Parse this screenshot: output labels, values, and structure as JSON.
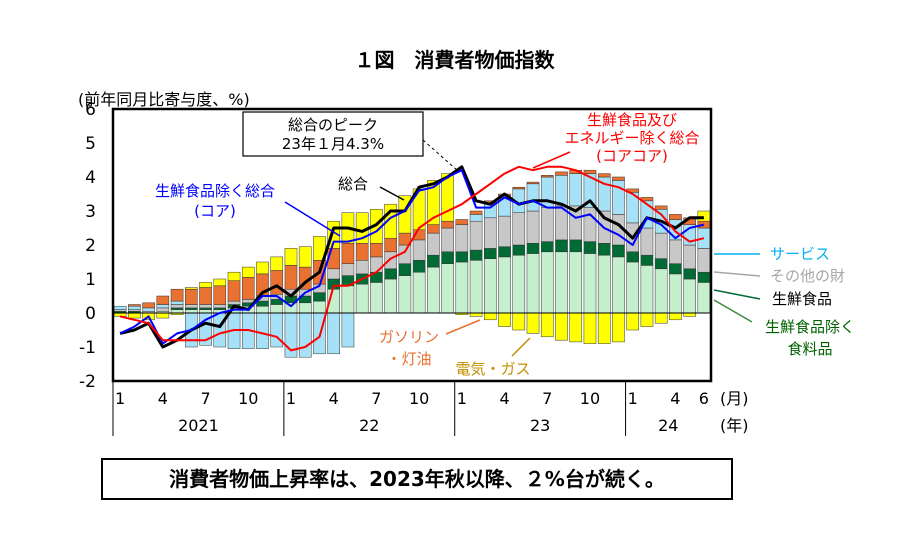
{
  "title": "１図　消費者物価指数",
  "summary": "消費者物価上昇率は、2023年秋以降、２%台が続く。",
  "chart_data": {
    "type": "bar",
    "stacked": true,
    "ylabel": "(前年同月比寄与度、%)",
    "ylim": [
      -2,
      6
    ],
    "y_ticks": [
      "-2",
      "-1",
      "0",
      "1",
      "2",
      "3",
      "4",
      "5",
      "6"
    ],
    "x_month_ticks": [
      "1",
      "4",
      "7",
      "10",
      "1",
      "4",
      "7",
      "10",
      "1",
      "4",
      "7",
      "10",
      "1",
      "4",
      "6"
    ],
    "x_month_unit": "(月)",
    "x_years": [
      "2021",
      "22",
      "23",
      "24"
    ],
    "x_year_unit": "(年)",
    "months": [
      "2021-01",
      "2021-02",
      "2021-03",
      "2021-04",
      "2021-05",
      "2021-06",
      "2021-07",
      "2021-08",
      "2021-09",
      "2021-10",
      "2021-11",
      "2021-12",
      "2022-01",
      "2022-02",
      "2022-03",
      "2022-04",
      "2022-05",
      "2022-06",
      "2022-07",
      "2022-08",
      "2022-09",
      "2022-10",
      "2022-11",
      "2022-12",
      "2023-01",
      "2023-02",
      "2023-03",
      "2023-04",
      "2023-05",
      "2023-06",
      "2023-07",
      "2023-08",
      "2023-09",
      "2023-10",
      "2023-11",
      "2023-12",
      "2024-01",
      "2024-02",
      "2024-03",
      "2024-04",
      "2024-05",
      "2024-06"
    ],
    "components": [
      {
        "key": "food_ex_fresh",
        "label": "生鮮食品除く\n食料品",
        "color": "#c6efce",
        "label_color": "#006100",
        "values": [
          0.0,
          0.0,
          0.0,
          0.05,
          0.1,
          0.1,
          0.1,
          0.1,
          0.15,
          0.2,
          0.2,
          0.25,
          0.3,
          0.3,
          0.35,
          0.7,
          0.8,
          0.85,
          0.9,
          1.0,
          1.1,
          1.2,
          1.35,
          1.45,
          1.5,
          1.55,
          1.6,
          1.65,
          1.7,
          1.75,
          1.8,
          1.8,
          1.8,
          1.75,
          1.7,
          1.65,
          1.5,
          1.4,
          1.3,
          1.15,
          1.0,
          0.9
        ]
      },
      {
        "key": "fresh_food",
        "label": "生鮮食品",
        "color": "#006b35",
        "label_color": "#000000",
        "values": [
          0.05,
          0.05,
          0.0,
          0.0,
          0.05,
          0.05,
          0.05,
          0.05,
          0.1,
          0.1,
          0.15,
          0.15,
          0.2,
          0.2,
          0.25,
          0.3,
          0.3,
          0.3,
          0.3,
          0.3,
          0.35,
          0.35,
          0.35,
          0.35,
          0.3,
          0.3,
          0.3,
          0.3,
          0.3,
          0.3,
          0.3,
          0.35,
          0.35,
          0.35,
          0.35,
          0.35,
          0.3,
          0.3,
          0.3,
          0.3,
          0.3,
          0.3
        ]
      },
      {
        "key": "other_goods",
        "label": "その他の財",
        "color": "#c8c8c8",
        "label_color": "#a6a6a6",
        "values": [
          0.05,
          0.05,
          0.05,
          0.1,
          0.1,
          0.1,
          0.1,
          0.1,
          0.1,
          0.1,
          0.15,
          0.15,
          0.2,
          0.2,
          0.25,
          0.3,
          0.35,
          0.4,
          0.45,
          0.5,
          0.55,
          0.6,
          0.65,
          0.7,
          0.8,
          0.85,
          0.9,
          0.9,
          0.95,
          0.95,
          1.0,
          1.0,
          1.0,
          1.0,
          0.95,
          0.9,
          0.85,
          0.8,
          0.75,
          0.7,
          0.7,
          0.7
        ]
      },
      {
        "key": "services",
        "label": "サービス",
        "color": "#a6e1f7",
        "label_color": "#00b0f0",
        "values": [
          0.1,
          0.1,
          0.1,
          0.1,
          0.1,
          -1.0,
          -0.95,
          -1.0,
          -1.05,
          -1.05,
          -1.05,
          -1.0,
          -1.3,
          -1.3,
          -1.2,
          -1.2,
          -1.0,
          0.0,
          0.0,
          0.0,
          0.0,
          0.0,
          0.0,
          0.0,
          0.0,
          0.2,
          0.4,
          0.6,
          0.7,
          0.8,
          0.9,
          0.9,
          0.95,
          1.0,
          1.0,
          1.0,
          0.9,
          0.8,
          0.7,
          0.6,
          0.6,
          0.6
        ]
      },
      {
        "key": "energy_gasoline",
        "label": "ガソリン\n・灯油",
        "color": "#e97132",
        "label_color": "#e97132",
        "values": [
          0.0,
          0.05,
          0.15,
          0.25,
          0.35,
          0.45,
          0.5,
          0.55,
          0.6,
          0.65,
          0.65,
          0.7,
          0.7,
          0.65,
          0.7,
          0.6,
          0.6,
          0.5,
          0.4,
          0.4,
          0.35,
          0.3,
          0.25,
          0.2,
          0.15,
          0.1,
          0.1,
          0.05,
          0.05,
          0.05,
          0.05,
          0.1,
          0.1,
          0.1,
          0.1,
          0.1,
          0.1,
          0.1,
          0.1,
          0.15,
          0.2,
          0.2
        ]
      },
      {
        "key": "energy_electricity_gas",
        "label": "電気・ガス",
        "color": "#ffff00",
        "label_color": "#c09000",
        "values": [
          -0.1,
          -0.15,
          -0.2,
          -0.15,
          -0.05,
          0.05,
          0.15,
          0.2,
          0.25,
          0.3,
          0.35,
          0.4,
          0.5,
          0.6,
          0.7,
          0.8,
          0.9,
          0.9,
          1.0,
          1.0,
          1.1,
          1.2,
          1.3,
          1.4,
          -0.05,
          -0.1,
          -0.2,
          -0.4,
          -0.5,
          -0.6,
          -0.7,
          -0.8,
          -0.85,
          -0.9,
          -0.9,
          -0.85,
          -0.5,
          -0.4,
          -0.3,
          -0.2,
          -0.1,
          0.3
        ]
      }
    ],
    "lines": [
      {
        "key": "headline",
        "label": "総合",
        "color": "#000000",
        "values": [
          -0.6,
          -0.5,
          -0.3,
          -1.0,
          -0.8,
          -0.5,
          -0.3,
          -0.4,
          0.2,
          0.1,
          0.6,
          0.8,
          0.5,
          0.9,
          1.2,
          2.5,
          2.5,
          2.4,
          2.6,
          3.0,
          3.0,
          3.7,
          3.8,
          4.0,
          4.3,
          3.3,
          3.2,
          3.5,
          3.2,
          3.3,
          3.3,
          3.2,
          3.0,
          3.3,
          2.8,
          2.6,
          2.2,
          2.8,
          2.7,
          2.5,
          2.8,
          2.8
        ]
      },
      {
        "key": "core",
        "label": "生鮮食品除く総合\n(コア)",
        "color": "#0000ff",
        "values": [
          -0.6,
          -0.4,
          -0.1,
          -0.9,
          -0.6,
          -0.5,
          -0.2,
          0.0,
          0.1,
          0.1,
          0.5,
          0.5,
          0.2,
          0.6,
          0.8,
          2.1,
          2.1,
          2.2,
          2.4,
          2.8,
          3.0,
          3.6,
          3.7,
          4.0,
          4.2,
          3.1,
          3.1,
          3.4,
          3.2,
          3.3,
          3.1,
          3.1,
          2.8,
          2.9,
          2.5,
          2.3,
          2.0,
          2.8,
          2.6,
          2.2,
          2.5,
          2.6
        ]
      },
      {
        "key": "core_core",
        "label": "生鮮食品及び\nエネルギー除く総合\n(コアコア)",
        "color": "#ff0000",
        "values": [
          -0.1,
          -0.2,
          -0.3,
          -0.8,
          -0.8,
          -0.8,
          -0.8,
          -0.6,
          -0.5,
          -0.5,
          -0.6,
          -0.7,
          -1.1,
          -1.0,
          -0.7,
          0.8,
          0.8,
          1.0,
          1.2,
          1.6,
          1.8,
          2.5,
          2.8,
          3.0,
          3.2,
          3.5,
          3.8,
          4.1,
          4.3,
          4.2,
          4.3,
          4.3,
          4.2,
          4.0,
          3.8,
          3.7,
          3.5,
          3.2,
          2.9,
          2.4,
          2.1,
          2.2
        ]
      }
    ],
    "peak_callout": "総合のピーク\n23年１月4.3%"
  }
}
